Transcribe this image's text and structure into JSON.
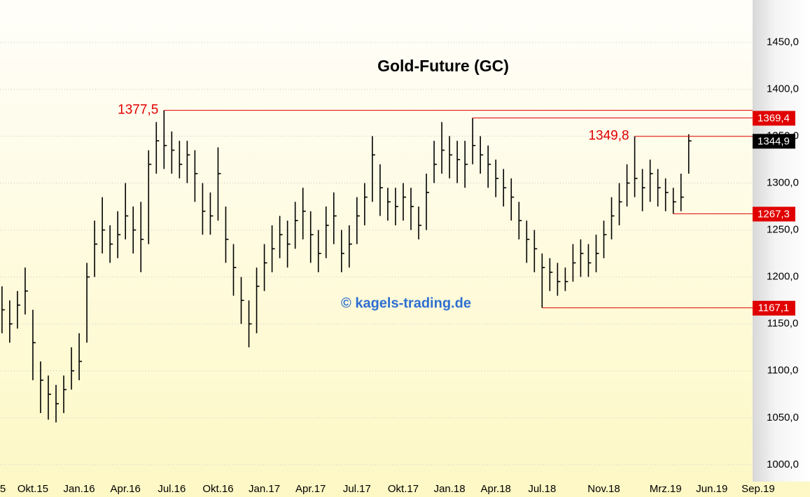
{
  "chart_data": {
    "type": "ohlc",
    "title": "Gold-Future (GC)",
    "watermark": "© kagels-trading.de",
    "x": [
      7,
      7.5,
      8,
      8.5,
      9,
      9.5,
      10,
      10.5,
      11,
      11.5,
      12,
      12.5,
      13,
      13.5,
      14,
      14.5,
      15,
      15.5,
      16,
      16.5,
      17,
      17.5,
      18,
      18.5,
      19,
      19.5,
      20,
      20.5,
      21,
      21.5,
      22,
      22.5,
      23,
      23.5,
      24,
      24.5,
      25,
      25.5,
      26,
      26.5,
      27,
      27.5,
      28,
      28.5,
      29,
      29.5,
      30,
      30.5,
      31,
      31.5,
      32,
      32.5,
      33,
      33.5,
      34,
      34.5,
      35,
      35.5,
      36,
      36.5,
      37,
      37.5,
      38,
      38.5,
      39,
      39.5,
      40,
      40.5,
      41,
      41.5,
      42,
      42.5,
      43,
      43.5,
      44,
      44.5,
      45,
      45.5,
      46,
      46.5,
      47,
      47.5,
      48,
      48.5,
      49,
      49.5,
      50,
      50.5,
      51,
      51.5
    ],
    "high": [
      1190,
      1175,
      1185,
      1210,
      1165,
      1110,
      1095,
      1085,
      1095,
      1125,
      1140,
      1215,
      1260,
      1285,
      1255,
      1270,
      1300,
      1275,
      1280,
      1335,
      1365,
      1377.5,
      1355,
      1345,
      1345,
      1335,
      1300,
      1290,
      1338,
      1275,
      1235,
      1200,
      1175,
      1210,
      1235,
      1255,
      1265,
      1260,
      1280,
      1295,
      1270,
      1250,
      1275,
      1290,
      1250,
      1255,
      1285,
      1300,
      1350,
      1320,
      1295,
      1295,
      1300,
      1295,
      1275,
      1310,
      1345,
      1365,
      1350,
      1345,
      1345,
      1369.4,
      1350,
      1340,
      1325,
      1315,
      1305,
      1280,
      1260,
      1250,
      1225,
      1220,
      1215,
      1210,
      1235,
      1240,
      1235,
      1245,
      1260,
      1285,
      1300,
      1320,
      1349.8,
      1315,
      1325,
      1315,
      1305,
      1295,
      1310,
      1352
    ],
    "low": [
      1140,
      1130,
      1145,
      1160,
      1090,
      1055,
      1048,
      1045,
      1055,
      1080,
      1090,
      1130,
      1200,
      1225,
      1215,
      1220,
      1240,
      1225,
      1205,
      1235,
      1310,
      1315,
      1310,
      1305,
      1300,
      1280,
      1245,
      1245,
      1260,
      1215,
      1180,
      1150,
      1125,
      1140,
      1185,
      1205,
      1220,
      1210,
      1230,
      1240,
      1215,
      1205,
      1220,
      1235,
      1205,
      1210,
      1235,
      1255,
      1280,
      1265,
      1260,
      1255,
      1260,
      1250,
      1240,
      1250,
      1300,
      1310,
      1305,
      1300,
      1295,
      1320,
      1310,
      1295,
      1285,
      1275,
      1260,
      1240,
      1215,
      1205,
      1167.1,
      1185,
      1180,
      1185,
      1195,
      1200,
      1200,
      1205,
      1220,
      1240,
      1255,
      1275,
      1285,
      1270,
      1280,
      1275,
      1270,
      1267.3,
      1270,
      1310
    ],
    "close": [
      1165,
      1150,
      1170,
      1185,
      1130,
      1090,
      1075,
      1065,
      1080,
      1100,
      1110,
      1200,
      1235,
      1250,
      1235,
      1245,
      1265,
      1250,
      1240,
      1320,
      1345,
      1340,
      1335,
      1320,
      1330,
      1310,
      1270,
      1265,
      1310,
      1240,
      1210,
      1175,
      1150,
      1190,
      1215,
      1230,
      1245,
      1235,
      1260,
      1270,
      1245,
      1225,
      1255,
      1265,
      1225,
      1235,
      1265,
      1285,
      1330,
      1295,
      1280,
      1275,
      1285,
      1275,
      1255,
      1290,
      1320,
      1335,
      1330,
      1325,
      1320,
      1340,
      1330,
      1320,
      1305,
      1295,
      1285,
      1260,
      1240,
      1230,
      1210,
      1205,
      1195,
      1195,
      1215,
      1225,
      1215,
      1225,
      1245,
      1265,
      1280,
      1300,
      1305,
      1295,
      1310,
      1295,
      1290,
      1280,
      1285,
      1344.9
    ],
    "color": "#000000",
    "xlim": [
      6.87,
      55.64
    ],
    "xticks": [
      {
        "value": 6,
        "label": "5"
      },
      {
        "value": 9,
        "label": "Okt.15"
      },
      {
        "value": 12,
        "label": "Jan.16"
      },
      {
        "value": 15,
        "label": "Apr.16"
      },
      {
        "value": 18,
        "label": "Jul.16"
      },
      {
        "value": 21,
        "label": "Okt.16"
      },
      {
        "value": 24,
        "label": "Jan.17"
      },
      {
        "value": 27,
        "label": "Apr.17"
      },
      {
        "value": 30,
        "label": "Jul.17"
      },
      {
        "value": 33,
        "label": "Okt.17"
      },
      {
        "value": 36,
        "label": "Jan.18"
      },
      {
        "value": 39,
        "label": "Apr.18"
      },
      {
        "value": 42,
        "label": "Jul.18"
      },
      {
        "value": 46,
        "label": "Nov.18"
      },
      {
        "value": 50,
        "label": "Mrz.19"
      },
      {
        "value": 53,
        "label": "Jun.19"
      },
      {
        "value": 56,
        "label": "Sep.19"
      }
    ],
    "ylim": [
      982,
      1495
    ],
    "yticks": [
      {
        "value": 1000,
        "label": "1000,0"
      },
      {
        "value": 1050,
        "label": "1050,0"
      },
      {
        "value": 1100,
        "label": "1100,0"
      },
      {
        "value": 1150,
        "label": "1150,0"
      },
      {
        "value": 1200,
        "label": "1200,0"
      },
      {
        "value": 1250,
        "label": "1250,0"
      },
      {
        "value": 1300,
        "label": "1300,0"
      },
      {
        "value": 1350,
        "label": "1350,0"
      },
      {
        "value": 1400,
        "label": "1400,0"
      },
      {
        "value": 1450,
        "label": "1450,0"
      }
    ],
    "grid": true,
    "levels": [
      {
        "value": 1377.5,
        "label": "1377,5",
        "x": 17.5,
        "style": "text",
        "color": "#e00000",
        "line": true
      },
      {
        "value": 1369.4,
        "label": "1369,4",
        "x": 37.5,
        "style": "box",
        "color": "#e00000",
        "line": true
      },
      {
        "value": 1349.8,
        "label": "1349,8",
        "x": 48,
        "style": "text",
        "color": "#e00000",
        "line": true
      },
      {
        "value": 1344.9,
        "label": "1344,9",
        "x": 51.5,
        "style": "box",
        "color": "#000000",
        "line": false
      },
      {
        "value": 1267.3,
        "label": "1267,3",
        "x": 50.5,
        "style": "box",
        "color": "#e00000",
        "line": true
      },
      {
        "value": 1167.1,
        "label": "1167,1",
        "x": 42,
        "style": "box",
        "color": "#e00000",
        "line": true
      }
    ]
  }
}
